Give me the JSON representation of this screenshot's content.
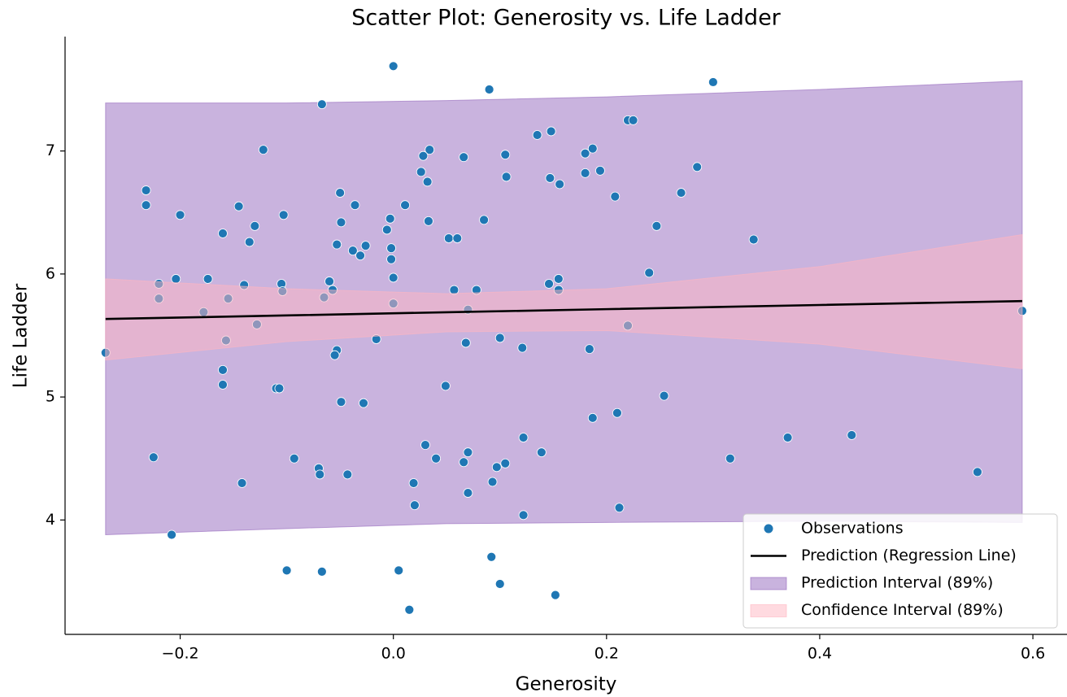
{
  "chart_data": {
    "type": "scatter",
    "title": "Scatter Plot: Generosity vs. Life Ladder",
    "x_label": "Generosity",
    "y_label": "Life Ladder",
    "xlim": [
      -0.308,
      0.632
    ],
    "ylim": [
      3.07,
      7.93
    ],
    "xticks": [
      {
        "value": -0.2,
        "label": "−0.2"
      },
      {
        "value": 0,
        "label": "0.0"
      },
      {
        "value": 0.2,
        "label": "0.2"
      },
      {
        "value": 0.4,
        "label": "0.4"
      },
      {
        "value": 0.6,
        "label": "0.6"
      }
    ],
    "yticks": [
      4,
      5,
      6,
      7
    ],
    "legend": "lower right",
    "series": [
      {
        "name": "Observations",
        "type": "scatter",
        "color": "#1f77b4",
        "x": [
          -0.27,
          0.0,
          0.09,
          0.3,
          -0.067,
          0.22,
          0.225,
          0.135,
          0.148,
          -0.122,
          0.034,
          0.028,
          0.066,
          0.105,
          0.18,
          0.187,
          0.194,
          0.18,
          0.285,
          0.026,
          0.032,
          0.106,
          0.147,
          0.156,
          -0.232,
          -0.05,
          0.27,
          0.208,
          -0.232,
          -0.145,
          -0.036,
          0.011,
          -0.2,
          -0.103,
          -0.003,
          0.033,
          0.085,
          -0.049,
          -0.13,
          0.247,
          -0.16,
          0.052,
          0.06,
          0.338,
          -0.135,
          -0.053,
          -0.026,
          -0.006,
          -0.002,
          -0.038,
          -0.031,
          -0.002,
          0.24,
          -0.204,
          -0.174,
          0.0,
          -0.105,
          -0.06,
          0.155,
          0.146,
          -0.22,
          -0.14,
          -0.057,
          0.057,
          0.078,
          -0.104,
          0.155,
          -0.22,
          -0.155,
          -0.065,
          0.0,
          -0.178,
          0.07,
          0.59,
          -0.128,
          0.22,
          -0.157,
          -0.016,
          0.1,
          0.068,
          0.121,
          0.184,
          -0.053,
          -0.055,
          -0.16,
          -0.16,
          -0.11,
          -0.107,
          0.049,
          0.254,
          -0.049,
          -0.028,
          0.187,
          0.21,
          0.122,
          0.37,
          0.43,
          0.03,
          -0.225,
          -0.093,
          0.04,
          0.139,
          0.07,
          0.316,
          0.066,
          0.105,
          0.097,
          -0.07,
          -0.069,
          -0.043,
          0.548,
          -0.142,
          0.019,
          0.093,
          0.07,
          0.02,
          0.212,
          0.122,
          -0.208,
          0.092,
          -0.1,
          -0.067,
          0.005,
          0.1,
          0.152,
          0.015
        ],
        "values": [
          5.36,
          7.69,
          7.5,
          7.56,
          7.38,
          7.25,
          7.25,
          7.13,
          7.16,
          7.01,
          7.01,
          6.96,
          6.95,
          6.97,
          6.98,
          7.02,
          6.84,
          6.82,
          6.87,
          6.83,
          6.75,
          6.79,
          6.78,
          6.73,
          6.68,
          6.66,
          6.66,
          6.63,
          6.56,
          6.55,
          6.56,
          6.56,
          6.48,
          6.48,
          6.45,
          6.43,
          6.44,
          6.42,
          6.39,
          6.39,
          6.33,
          6.29,
          6.29,
          6.28,
          6.26,
          6.24,
          6.23,
          6.36,
          6.21,
          6.19,
          6.15,
          6.12,
          6.01,
          5.96,
          5.96,
          5.97,
          5.92,
          5.94,
          5.96,
          5.92,
          5.92,
          5.91,
          5.87,
          5.87,
          5.87,
          5.86,
          5.87,
          5.8,
          5.8,
          5.81,
          5.76,
          5.69,
          5.71,
          5.7,
          5.59,
          5.58,
          5.46,
          5.47,
          5.48,
          5.44,
          5.4,
          5.39,
          5.38,
          5.34,
          5.22,
          5.1,
          5.07,
          5.07,
          5.09,
          5.01,
          4.96,
          4.95,
          4.83,
          4.87,
          4.67,
          4.67,
          4.69,
          4.61,
          4.51,
          4.5,
          4.5,
          4.55,
          4.55,
          4.5,
          4.47,
          4.46,
          4.43,
          4.42,
          4.37,
          4.37,
          4.39,
          4.3,
          4.3,
          4.31,
          4.22,
          4.12,
          4.1,
          4.04,
          3.88,
          3.7,
          3.59,
          3.58,
          3.59,
          3.48,
          3.39,
          3.27
        ]
      },
      {
        "name": "Prediction (Regression Line)",
        "type": "line",
        "color": "#000000",
        "x": [
          -0.27,
          -0.1,
          0.05,
          0.2,
          0.4,
          0.59
        ],
        "values": [
          5.634,
          5.663,
          5.689,
          5.714,
          5.748,
          5.78
        ]
      },
      {
        "name": "Prediction Interval (89%)",
        "type": "band",
        "color": "#9467bd",
        "x": [
          -0.27,
          -0.1,
          0.05,
          0.2,
          0.4,
          0.59
        ],
        "upper": [
          7.39,
          7.39,
          7.41,
          7.44,
          7.5,
          7.57
        ],
        "lower": [
          3.88,
          3.93,
          3.97,
          3.98,
          3.99,
          3.98
        ]
      },
      {
        "name": "Confidence Interval (89%)",
        "type": "band",
        "color": "#ffb6c1",
        "x": [
          -0.27,
          -0.1,
          0.05,
          0.2,
          0.4,
          0.59
        ],
        "upper": [
          5.96,
          5.88,
          5.84,
          5.88,
          6.06,
          6.32
        ],
        "lower": [
          5.3,
          5.45,
          5.53,
          5.54,
          5.43,
          5.23
        ]
      }
    ]
  }
}
